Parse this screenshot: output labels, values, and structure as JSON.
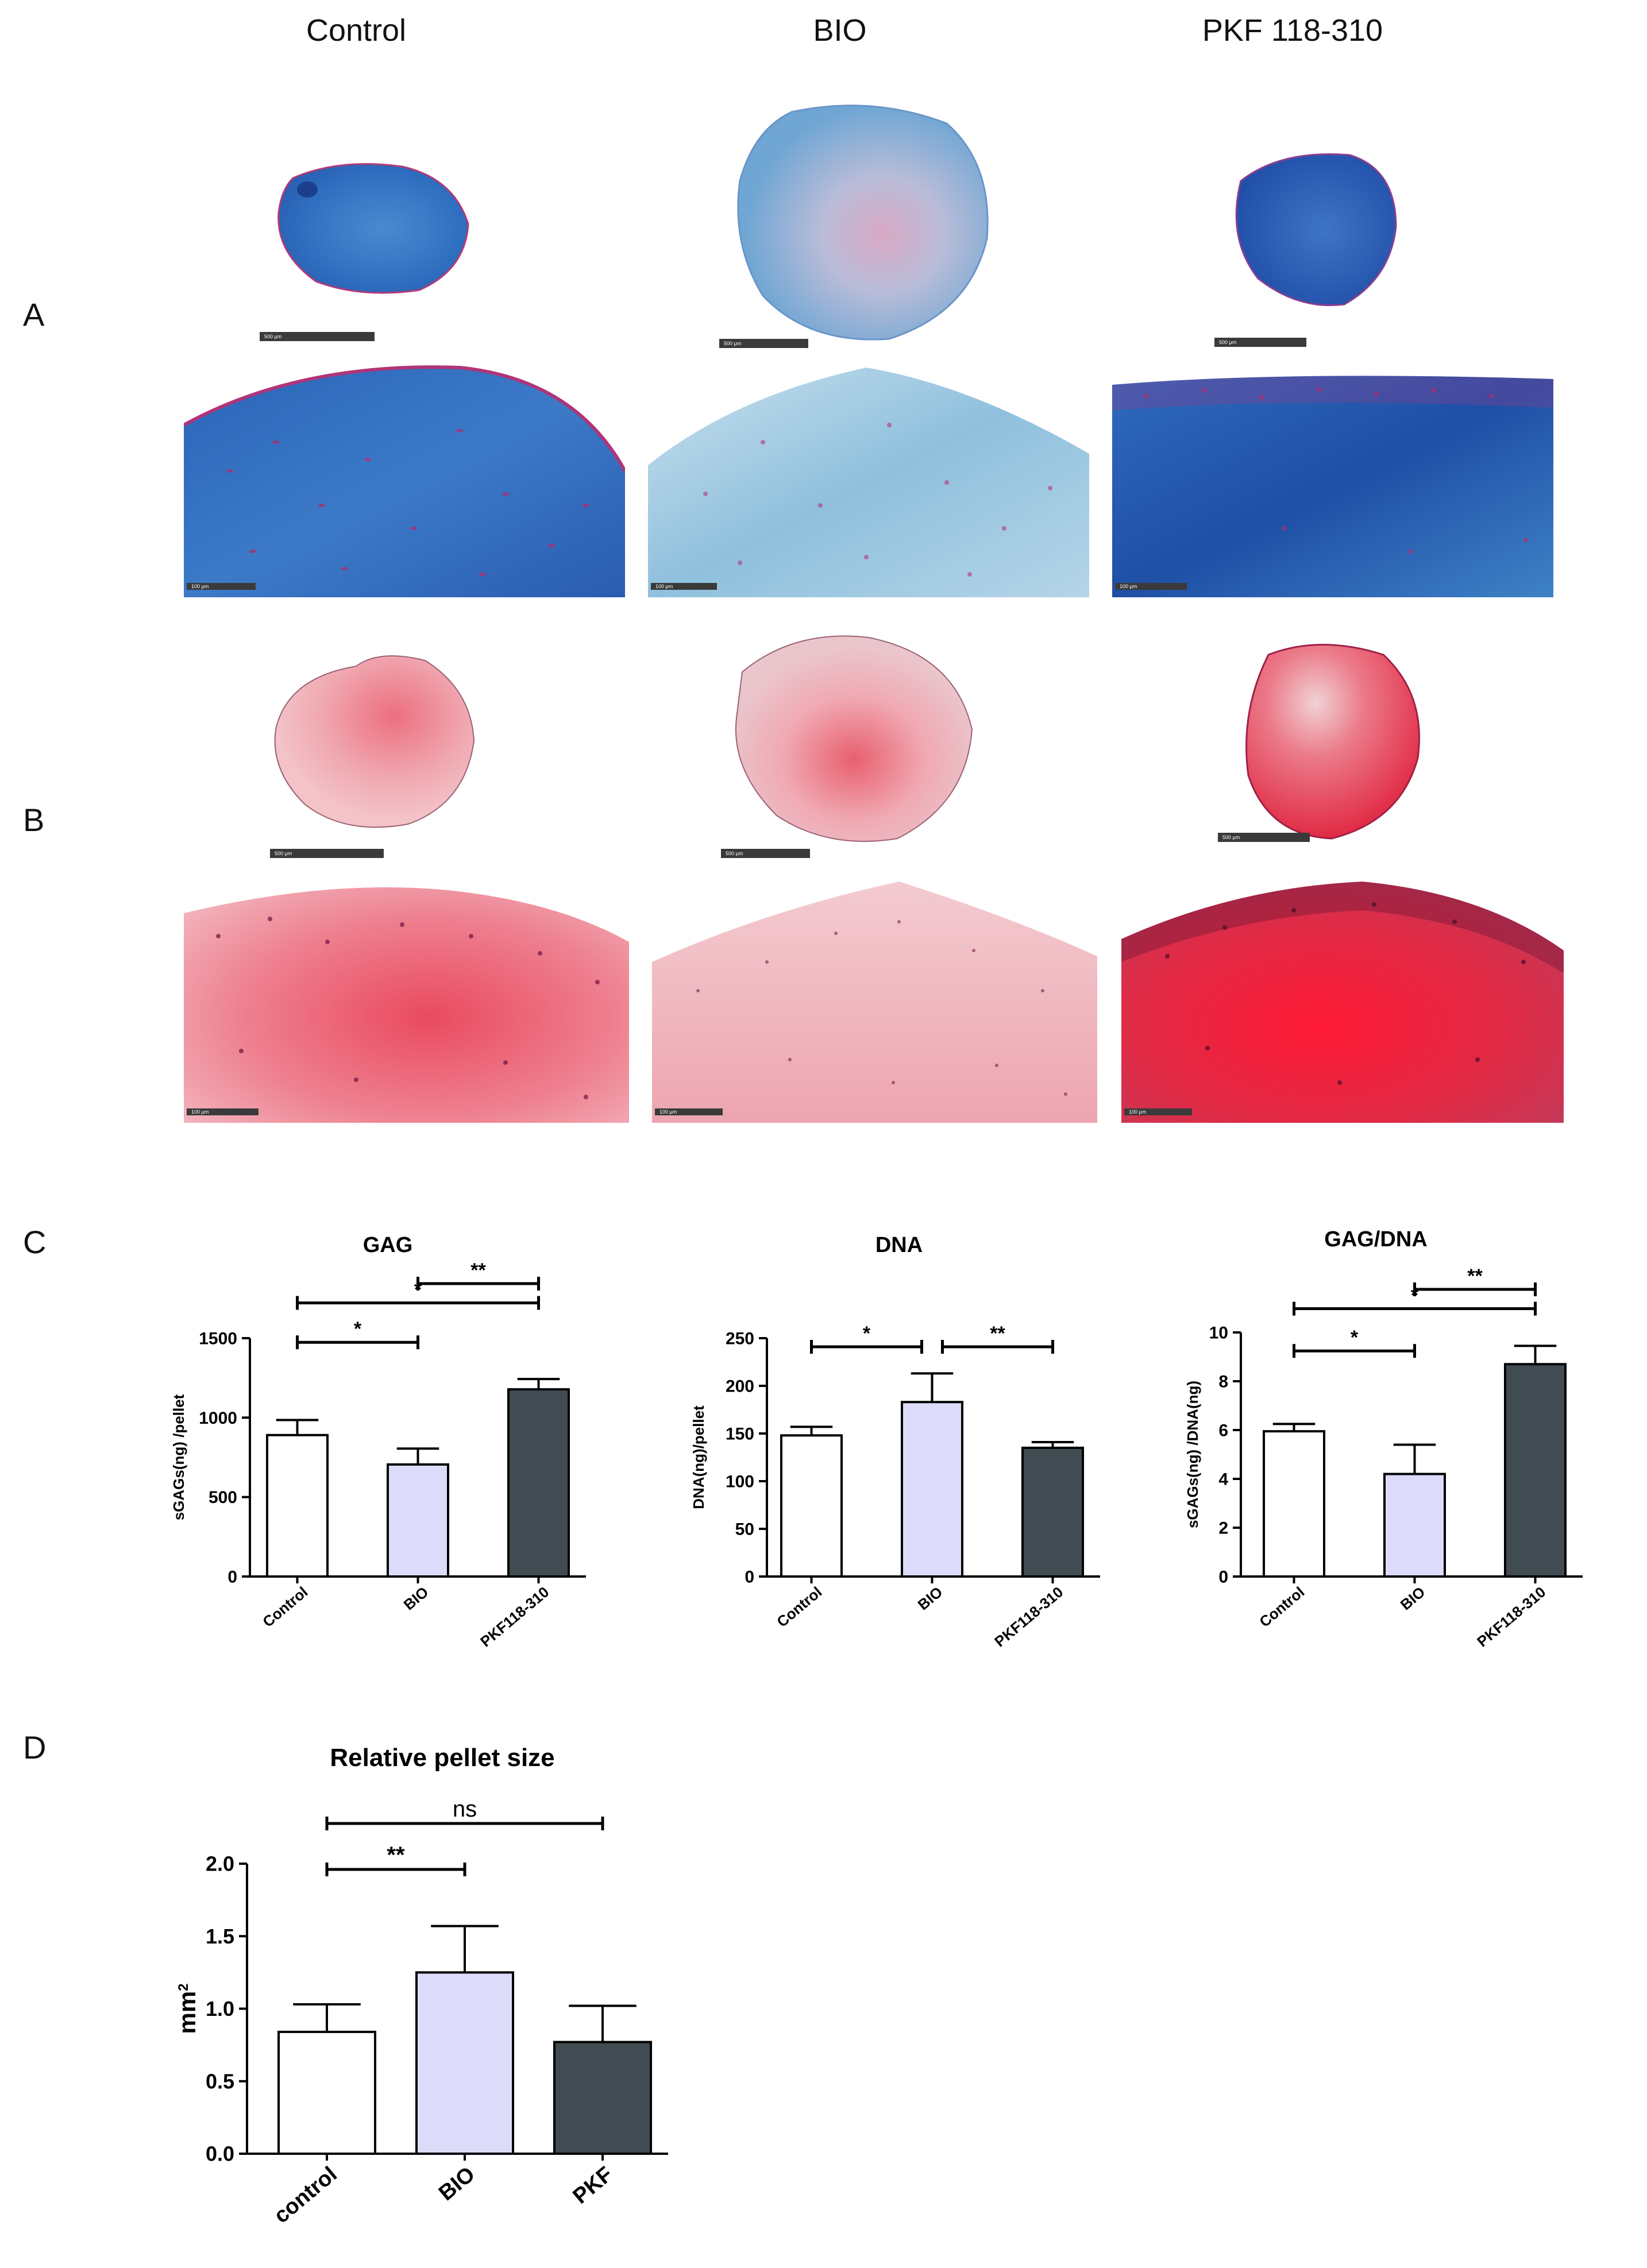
{
  "columns": [
    "Control",
    "BIO",
    "PKF 118-310"
  ],
  "row_labels": [
    "A",
    "B",
    "C",
    "D"
  ],
  "scale_labels": {
    "overview": "500 μm",
    "detail": "100 μm"
  },
  "colors": {
    "alcian_blue": "#2f6fc0",
    "alcian_light": "#7fb3d6",
    "alcian_dark": "#1e4fa6",
    "safranin": "#e8a0ad",
    "safranin_bright": "#e4334c",
    "nuclei": "#a0205c",
    "bar_control": "#ffffff",
    "bar_bio": "#dcdcfa",
    "bar_pkf": "#414b52"
  },
  "chart_data": [
    {
      "type": "bar",
      "panel": "C",
      "title": "GAG",
      "ylabel": "sGAGs(ng) /pellet",
      "categories": [
        "Control",
        "BIO",
        "PKF118-310"
      ],
      "values": [
        890,
        705,
        1178
      ],
      "errors": [
        95,
        100,
        65
      ],
      "ylim": [
        0,
        1500
      ],
      "yticks": [
        0,
        500,
        1000,
        1500
      ],
      "significance": [
        {
          "from": 0,
          "to": 1,
          "label": "*"
        },
        {
          "from": 0,
          "to": 2,
          "label": "*"
        },
        {
          "from": 1,
          "to": 2,
          "label": "**"
        }
      ]
    },
    {
      "type": "bar",
      "panel": "C",
      "title": "DNA",
      "ylabel": "DNA(ng)/pellet",
      "categories": [
        "Control",
        "BIO",
        "PKF118-310"
      ],
      "values": [
        148,
        183,
        135
      ],
      "errors": [
        9,
        30,
        6
      ],
      "ylim": [
        0,
        250
      ],
      "yticks": [
        0,
        50,
        100,
        150,
        200,
        250
      ],
      "significance": [
        {
          "from": 0,
          "to": 1,
          "label": "*"
        },
        {
          "from": 1,
          "to": 2,
          "label": "**"
        }
      ]
    },
    {
      "type": "bar",
      "panel": "C",
      "title": "GAG/DNA",
      "ylabel": "sGAGs(ng) /DNA(ng)",
      "categories": [
        "Control",
        "BIO",
        "PKF118-310"
      ],
      "values": [
        5.95,
        4.2,
        8.7
      ],
      "errors": [
        0.3,
        1.2,
        0.75
      ],
      "ylim": [
        0,
        10
      ],
      "yticks": [
        0,
        2,
        4,
        6,
        8,
        10
      ],
      "significance": [
        {
          "from": 0,
          "to": 1,
          "label": "*"
        },
        {
          "from": 0,
          "to": 2,
          "label": "*"
        },
        {
          "from": 1,
          "to": 2,
          "label": "**"
        }
      ]
    },
    {
      "type": "bar",
      "panel": "D",
      "title": "Relative pellet size",
      "ylabel": "mm",
      "ylabel_sup": "2",
      "categories": [
        "control",
        "BIO",
        "PKF"
      ],
      "values": [
        0.84,
        1.25,
        0.77
      ],
      "errors": [
        0.19,
        0.32,
        0.25
      ],
      "ylim": [
        0,
        2.0
      ],
      "yticks": [
        "0.0",
        "0.5",
        "1.0",
        "1.5",
        "2.0"
      ],
      "significance": [
        {
          "from": 0,
          "to": 1,
          "label": "**"
        },
        {
          "from": 0,
          "to": 2,
          "label": "ns"
        }
      ]
    }
  ]
}
